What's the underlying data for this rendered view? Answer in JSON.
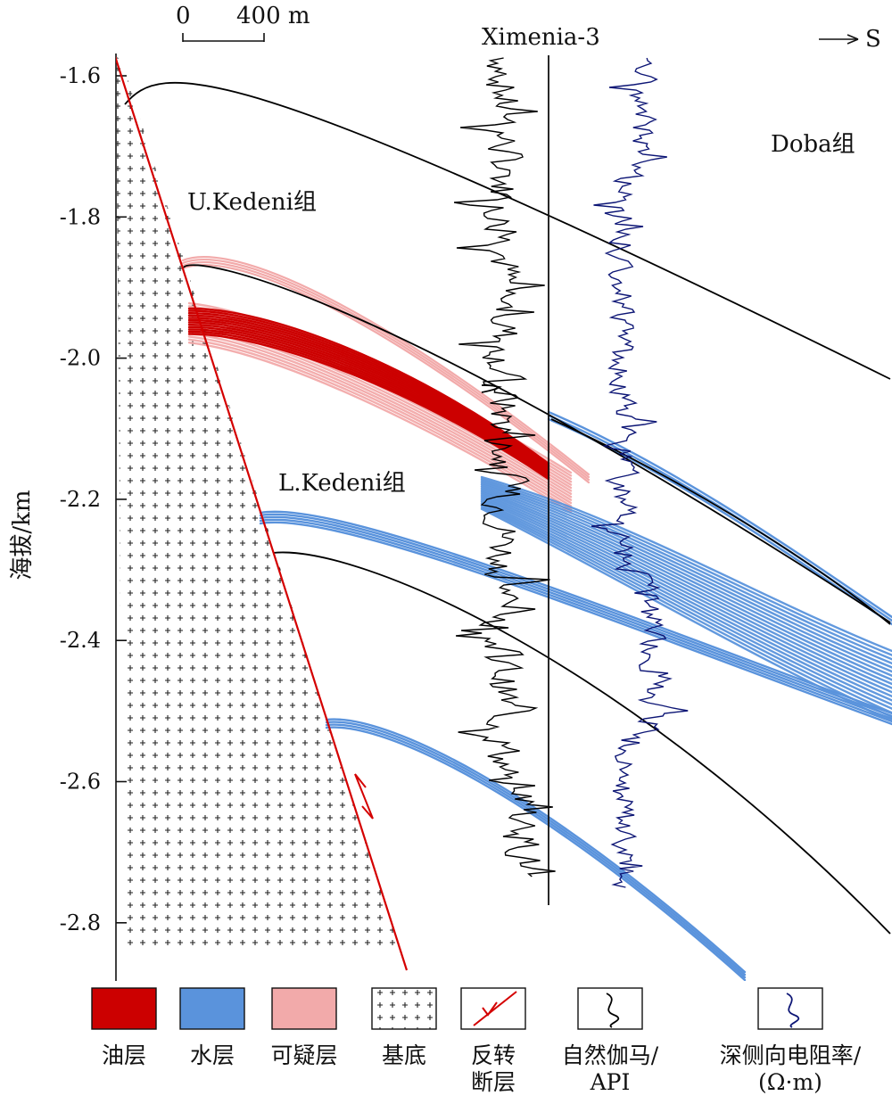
{
  "well": {
    "name": "Ximenia-3"
  },
  "direction": {
    "label": "S"
  },
  "scale_bar": {
    "start_label": "0",
    "end_label": "400 m"
  },
  "axis": {
    "ylabel": "海拔/km",
    "ticks": [
      "-1.6",
      "-1.8",
      "-2.0",
      "-2.2",
      "-2.4",
      "-2.6",
      "-2.8"
    ],
    "tick_values": [
      -1.6,
      -1.8,
      -2.0,
      -2.2,
      -2.4,
      -2.6,
      -2.8
    ]
  },
  "formations": {
    "doba": "Doba组",
    "upper_kedeni": "U.Kedeni组",
    "lower_kedeni": "L.Kedeni组"
  },
  "colors": {
    "oil": "#cc0000",
    "water": "#5a93dc",
    "suspect": "#f2aaaa",
    "fault": "#d40000",
    "gamma_log": "#000000",
    "resistivity_log": "#0c1575",
    "boundary": "#000000"
  },
  "legend": [
    {
      "key": "oil",
      "label": "油层",
      "icon": "oil-layer-swatch"
    },
    {
      "key": "water",
      "label": "水层",
      "icon": "water-layer-swatch"
    },
    {
      "key": "suspect",
      "label": "可疑层",
      "icon": "suspect-layer-swatch"
    },
    {
      "key": "basement",
      "label": "基底",
      "icon": "basement-cross-pattern"
    },
    {
      "key": "fault",
      "label": "反转\n断层",
      "icon": "reverse-fault-icon"
    },
    {
      "key": "gamma",
      "label": "自然伽马/\nAPI",
      "icon": "gamma-log-icon"
    },
    {
      "key": "resistivity",
      "label": "深侧向电阻率/\n(Ω·m)",
      "icon": "resistivity-log-icon"
    }
  ]
}
